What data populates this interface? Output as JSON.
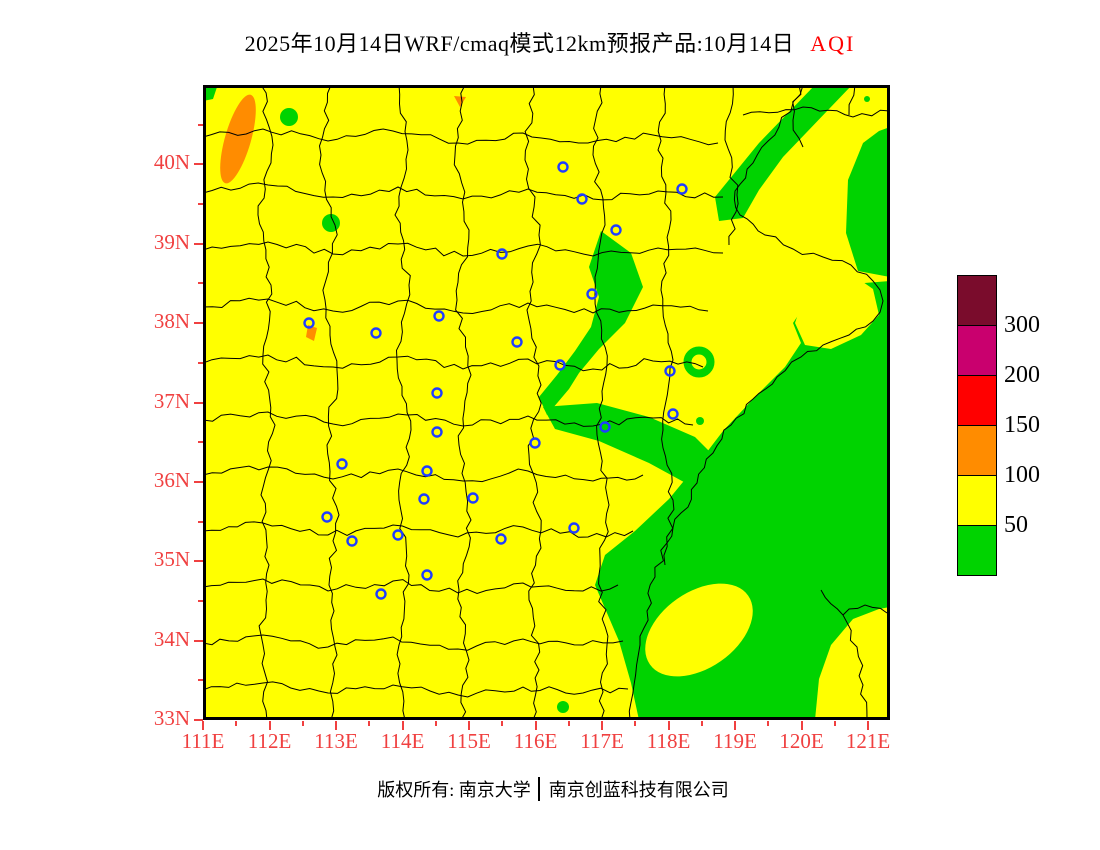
{
  "title": {
    "text": "2025年10月14日WRF/cmaq模式12km预报产品:10月14日",
    "aqi_label": "AQI"
  },
  "axes": {
    "y_labels": [
      "40N",
      "39N",
      "38N",
      "37N",
      "36N",
      "35N",
      "34N",
      "33N"
    ],
    "x_labels": [
      "111E",
      "112E",
      "113E",
      "114E",
      "115E",
      "116E",
      "117E",
      "118E",
      "119E",
      "120E",
      "121E"
    ],
    "label_color": "#f04040"
  },
  "legend": {
    "tick_labels": [
      "300",
      "200",
      "150",
      "100",
      "50"
    ],
    "colors_top_to_bottom": [
      "#7a0c2c",
      "#c9006e",
      "#ff0000",
      "#ff8c00",
      "#ffff00",
      "#00d300"
    ],
    "thresholds": [
      300,
      200,
      150,
      100,
      50
    ]
  },
  "footer": {
    "left": "版权所有: 南京大学",
    "right": "南京创蓝科技有限公司"
  },
  "map_colors": {
    "aqi_50_100_yellow": "#ffff00",
    "aqi_below_50_green": "#00d300",
    "aqi_100_150_orange": "#ff8c00",
    "boundary_line": "#000000",
    "city_marker_blue": "#1f3dff",
    "frame": "#000000"
  }
}
